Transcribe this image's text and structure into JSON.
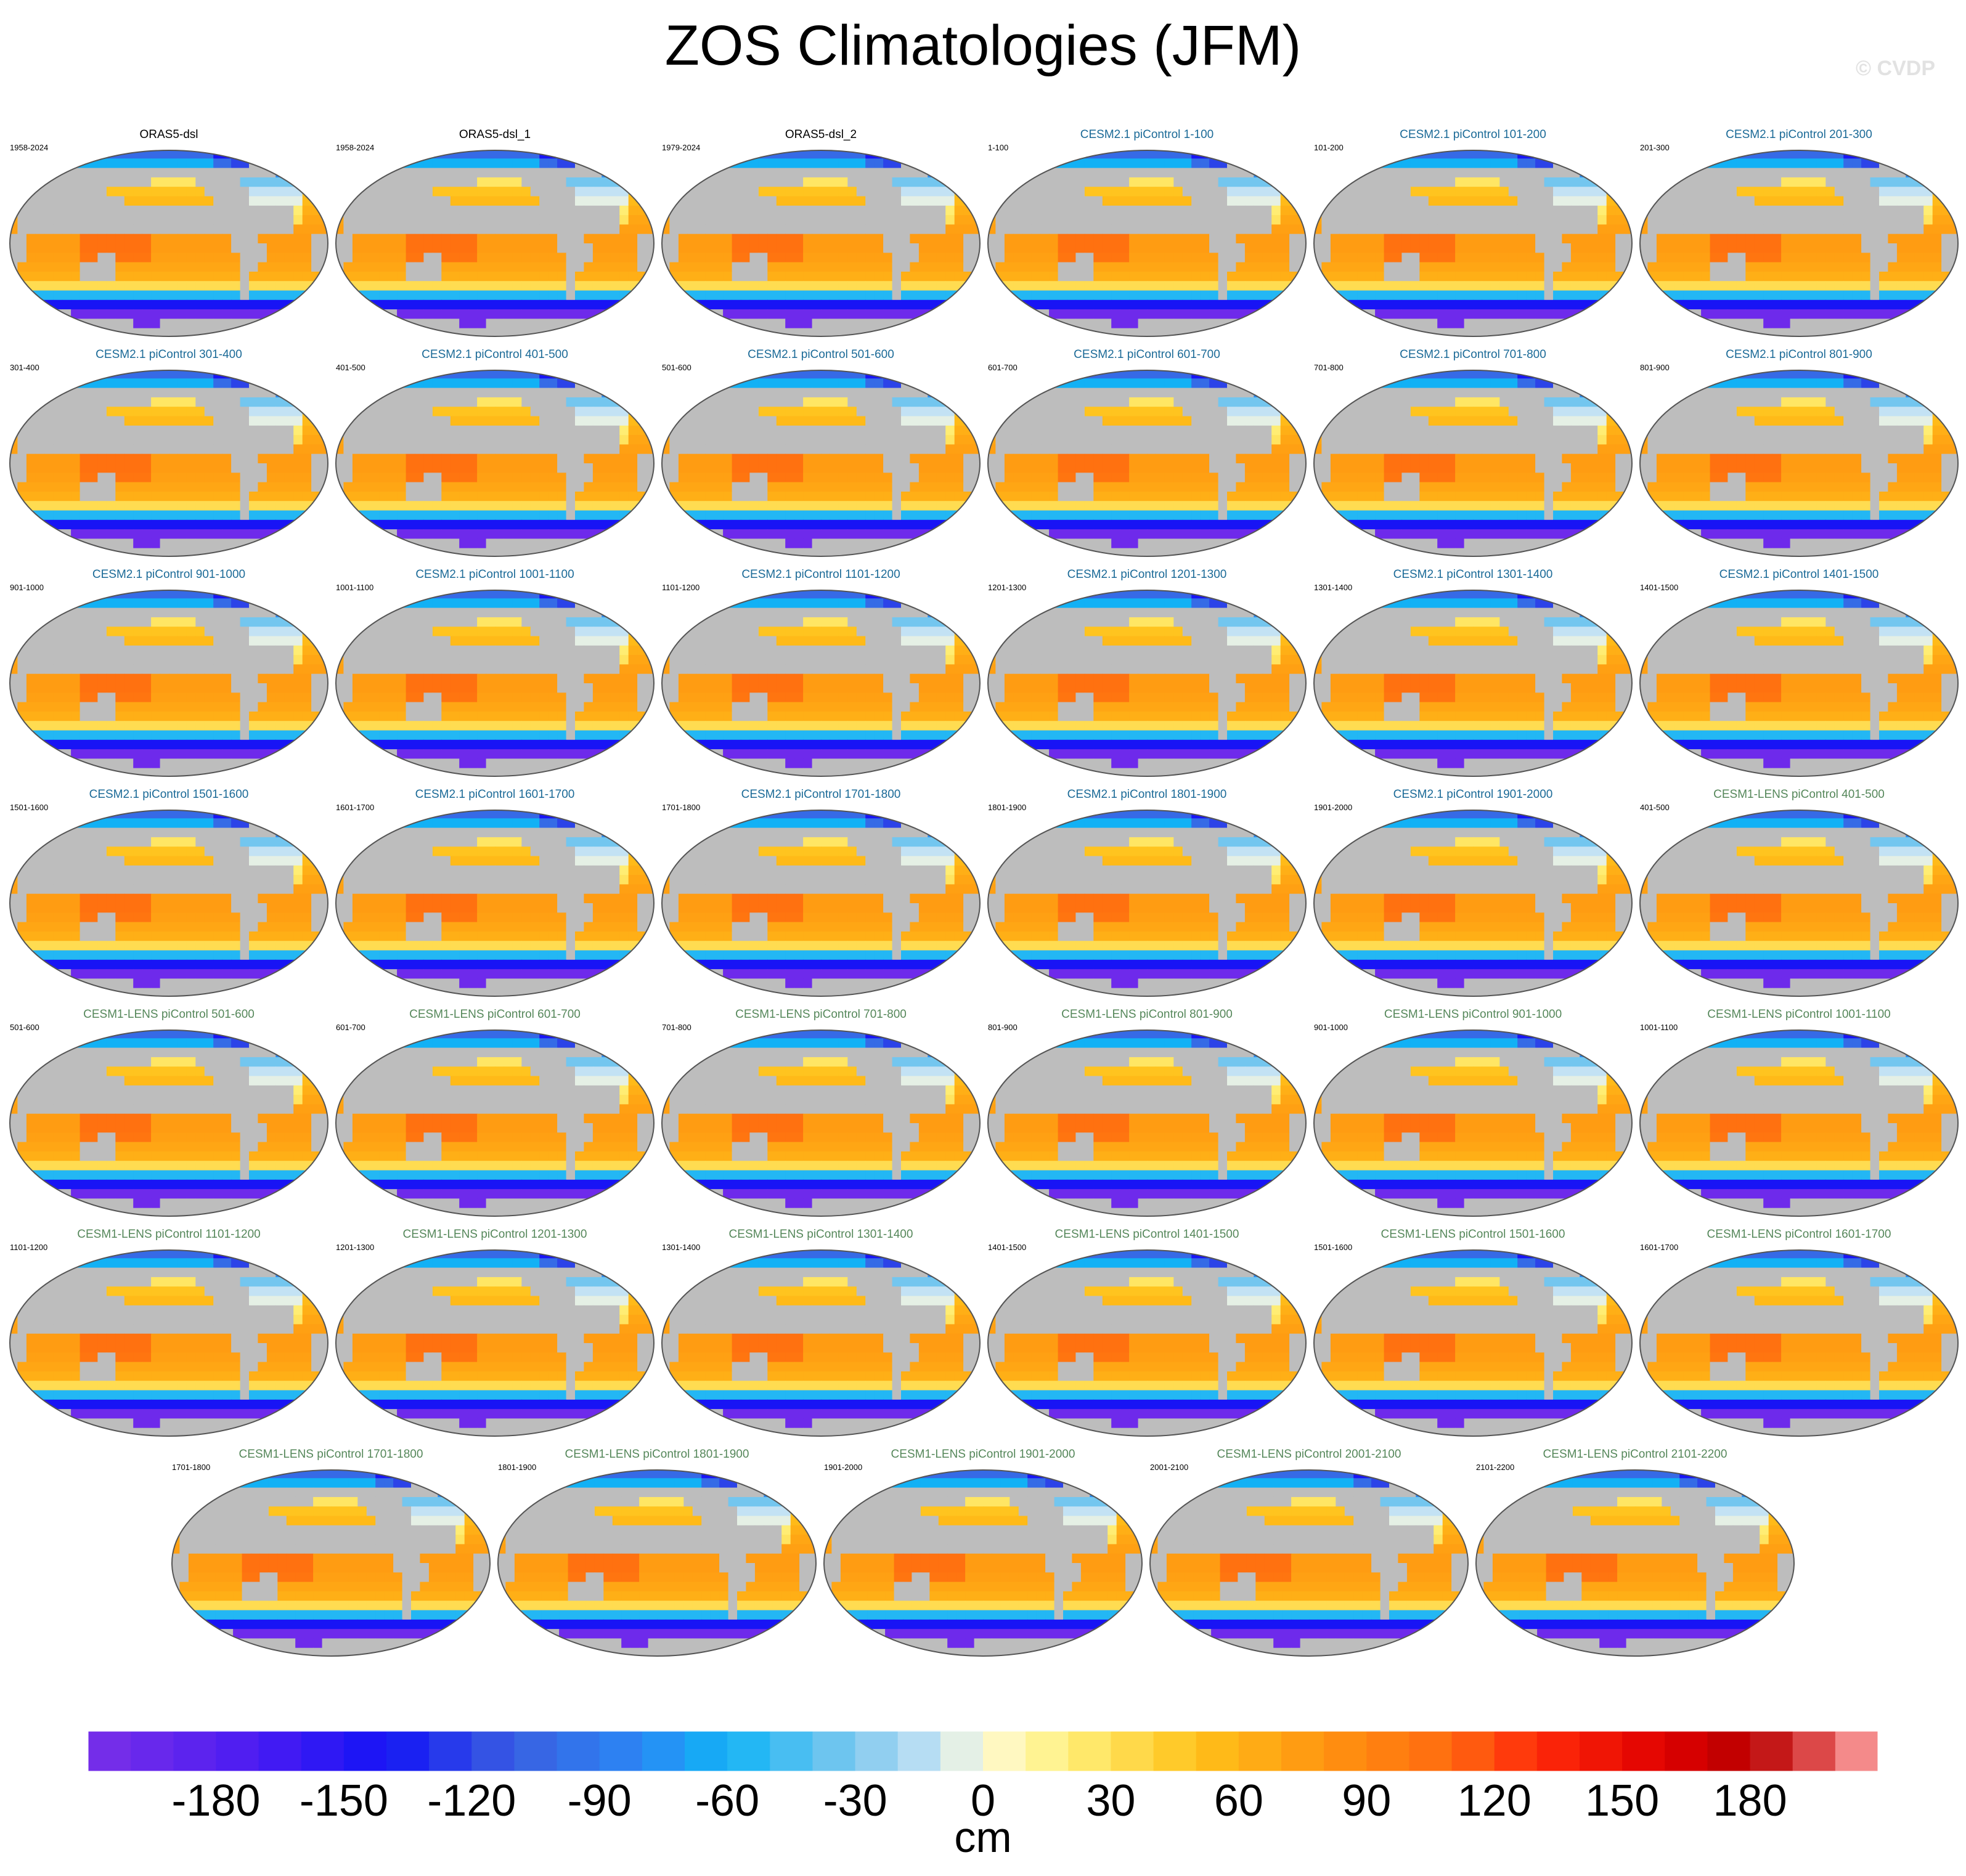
{
  "title": "ZOS Climatologies (JFM)",
  "watermark": "© CVDP",
  "colors": {
    "observations_title": "#000000",
    "cesm2_title": "#1b6a97",
    "cesm1_title": "#55875a",
    "land": "#bdbdbd",
    "ocean_outline": "#555555"
  },
  "panels": [
    {
      "title": "ORAS5-dsl",
      "period": "1958-2024",
      "group": "obs"
    },
    {
      "title": "ORAS5-dsl_1",
      "period": "1958-2024",
      "group": "obs"
    },
    {
      "title": "ORAS5-dsl_2",
      "period": "1979-2024",
      "group": "obs"
    },
    {
      "title": "CESM2.1 piControl 1-100",
      "period": "1-100",
      "group": "cesm2"
    },
    {
      "title": "CESM2.1 piControl 101-200",
      "period": "101-200",
      "group": "cesm2"
    },
    {
      "title": "CESM2.1 piControl 201-300",
      "period": "201-300",
      "group": "cesm2"
    },
    {
      "title": "CESM2.1 piControl 301-400",
      "period": "301-400",
      "group": "cesm2"
    },
    {
      "title": "CESM2.1 piControl 401-500",
      "period": "401-500",
      "group": "cesm2"
    },
    {
      "title": "CESM2.1 piControl 501-600",
      "period": "501-600",
      "group": "cesm2"
    },
    {
      "title": "CESM2.1 piControl 601-700",
      "period": "601-700",
      "group": "cesm2"
    },
    {
      "title": "CESM2.1 piControl 701-800",
      "period": "701-800",
      "group": "cesm2"
    },
    {
      "title": "CESM2.1 piControl 801-900",
      "period": "801-900",
      "group": "cesm2"
    },
    {
      "title": "CESM2.1 piControl 901-1000",
      "period": "901-1000",
      "group": "cesm2"
    },
    {
      "title": "CESM2.1 piControl 1001-1100",
      "period": "1001-1100",
      "group": "cesm2"
    },
    {
      "title": "CESM2.1 piControl 1101-1200",
      "period": "1101-1200",
      "group": "cesm2"
    },
    {
      "title": "CESM2.1 piControl 1201-1300",
      "period": "1201-1300",
      "group": "cesm2"
    },
    {
      "title": "CESM2.1 piControl 1301-1400",
      "period": "1301-1400",
      "group": "cesm2"
    },
    {
      "title": "CESM2.1 piControl 1401-1500",
      "period": "1401-1500",
      "group": "cesm2"
    },
    {
      "title": "CESM2.1 piControl 1501-1600",
      "period": "1501-1600",
      "group": "cesm2"
    },
    {
      "title": "CESM2.1 piControl 1601-1700",
      "period": "1601-1700",
      "group": "cesm2"
    },
    {
      "title": "CESM2.1 piControl 1701-1800",
      "period": "1701-1800",
      "group": "cesm2"
    },
    {
      "title": "CESM2.1 piControl 1801-1900",
      "period": "1801-1900",
      "group": "cesm2"
    },
    {
      "title": "CESM2.1 piControl 1901-2000",
      "period": "1901-2000",
      "group": "cesm2"
    },
    {
      "title": "CESM1-LENS piControl 401-500",
      "period": "401-500",
      "group": "cesm1"
    },
    {
      "title": "CESM1-LENS piControl 501-600",
      "period": "501-600",
      "group": "cesm1"
    },
    {
      "title": "CESM1-LENS piControl 601-700",
      "period": "601-700",
      "group": "cesm1"
    },
    {
      "title": "CESM1-LENS piControl 701-800",
      "period": "701-800",
      "group": "cesm1"
    },
    {
      "title": "CESM1-LENS piControl 801-900",
      "period": "801-900",
      "group": "cesm1"
    },
    {
      "title": "CESM1-LENS piControl 901-1000",
      "period": "901-1000",
      "group": "cesm1"
    },
    {
      "title": "CESM1-LENS piControl 1001-1100",
      "period": "1001-1100",
      "group": "cesm1"
    },
    {
      "title": "CESM1-LENS piControl 1101-1200",
      "period": "1101-1200",
      "group": "cesm1"
    },
    {
      "title": "CESM1-LENS piControl 1201-1300",
      "period": "1201-1300",
      "group": "cesm1"
    },
    {
      "title": "CESM1-LENS piControl 1301-1400",
      "period": "1301-1400",
      "group": "cesm1"
    },
    {
      "title": "CESM1-LENS piControl 1401-1500",
      "period": "1401-1500",
      "group": "cesm1"
    },
    {
      "title": "CESM1-LENS piControl 1501-1600",
      "period": "1501-1600",
      "group": "cesm1"
    },
    {
      "title": "CESM1-LENS piControl 1601-1700",
      "period": "1601-1700",
      "group": "cesm1"
    },
    {
      "title": "CESM1-LENS piControl 1701-1800",
      "period": "1701-1800",
      "group": "cesm1"
    },
    {
      "title": "CESM1-LENS piControl 1801-1900",
      "period": "1801-1900",
      "group": "cesm1"
    },
    {
      "title": "CESM1-LENS piControl 1901-2000",
      "period": "1901-2000",
      "group": "cesm1"
    },
    {
      "title": "CESM1-LENS piControl 2001-2100",
      "period": "2001-2100",
      "group": "cesm1"
    },
    {
      "title": "CESM1-LENS piControl 2101-2200",
      "period": "2101-2200",
      "group": "cesm1"
    }
  ],
  "colorbar": {
    "units": "cm",
    "min": -210,
    "max": 210,
    "step": 10,
    "tick_labels": [
      "-180",
      "-150",
      "-120",
      "-90",
      "-60",
      "-30",
      "0",
      "30",
      "60",
      "90",
      "120",
      "150",
      "180"
    ],
    "tick_values": [
      -180,
      -150,
      -120,
      -90,
      -60,
      -30,
      0,
      30,
      60,
      90,
      120,
      150,
      180
    ],
    "color_stops": [
      {
        "value": -210,
        "color": "#7a2fe8"
      },
      {
        "value": -170,
        "color": "#4a1bf2"
      },
      {
        "value": -140,
        "color": "#1414f5"
      },
      {
        "value": -110,
        "color": "#3a5fe0"
      },
      {
        "value": -80,
        "color": "#2a88f5"
      },
      {
        "value": -60,
        "color": "#10b4f5"
      },
      {
        "value": -30,
        "color": "#7fc8ee"
      },
      {
        "value": -10,
        "color": "#c8e4f4"
      },
      {
        "value": 0,
        "color": "#fffbd8"
      },
      {
        "value": 20,
        "color": "#fff07a"
      },
      {
        "value": 50,
        "color": "#ffc21a"
      },
      {
        "value": 80,
        "color": "#ff9410"
      },
      {
        "value": 110,
        "color": "#ff6a10"
      },
      {
        "value": 130,
        "color": "#ff2a0a"
      },
      {
        "value": 160,
        "color": "#e00000"
      },
      {
        "value": 180,
        "color": "#b80000"
      },
      {
        "value": 200,
        "color": "#e86060"
      },
      {
        "value": 210,
        "color": "#ffb3b3"
      }
    ]
  }
}
